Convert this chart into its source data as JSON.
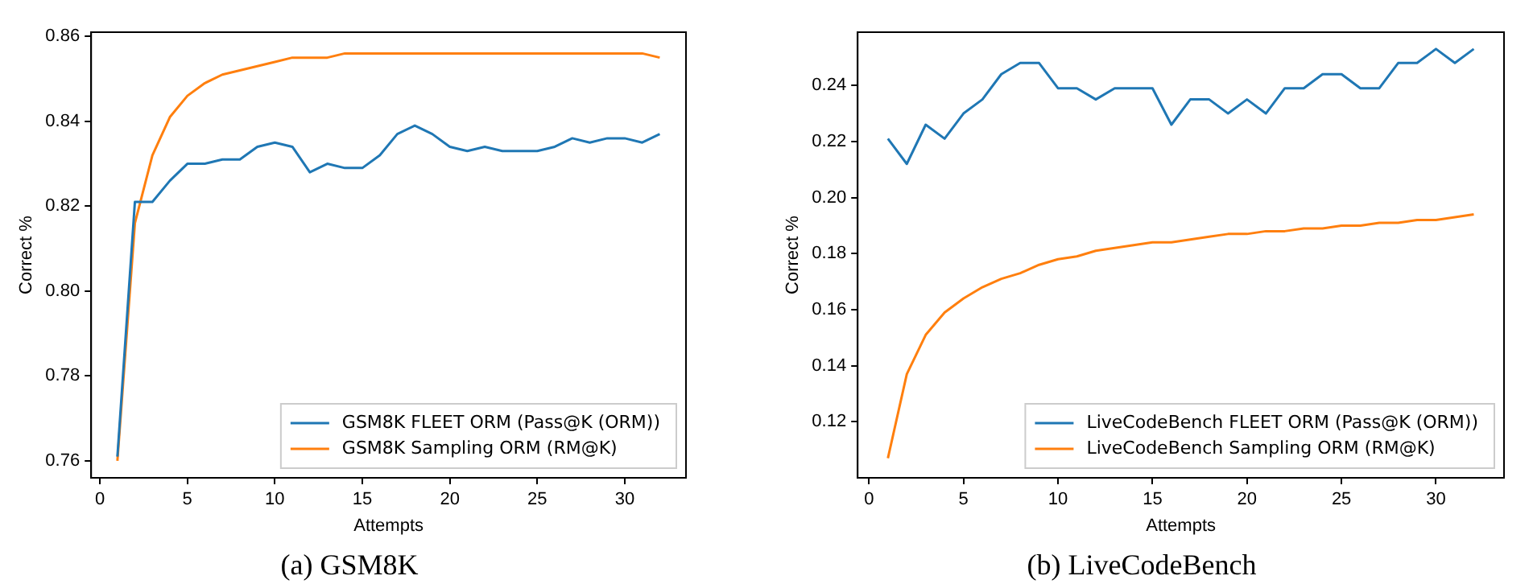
{
  "chart_data": [
    {
      "type": "line",
      "title": "(a) GSM8K",
      "xlabel": "Attempts",
      "ylabel": "Correct %",
      "x": [
        1,
        2,
        3,
        4,
        5,
        6,
        7,
        8,
        9,
        10,
        11,
        12,
        13,
        14,
        15,
        16,
        17,
        18,
        19,
        20,
        21,
        22,
        23,
        24,
        25,
        26,
        27,
        28,
        29,
        30,
        31,
        32
      ],
      "series": [
        {
          "name": "GSM8K FLEET ORM (Pass@K (ORM))",
          "color": "#1f77b4",
          "values": [
            0.761,
            0.821,
            0.821,
            0.826,
            0.83,
            0.83,
            0.831,
            0.831,
            0.834,
            0.835,
            0.834,
            0.828,
            0.83,
            0.829,
            0.829,
            0.832,
            0.837,
            0.839,
            0.837,
            0.834,
            0.833,
            0.834,
            0.833,
            0.833,
            0.833,
            0.834,
            0.836,
            0.835,
            0.836,
            0.836,
            0.835,
            0.837
          ]
        },
        {
          "name": "GSM8K Sampling ORM (RM@K)",
          "color": "#ff7f0e",
          "values": [
            0.76,
            0.816,
            0.832,
            0.841,
            0.846,
            0.849,
            0.851,
            0.852,
            0.853,
            0.854,
            0.855,
            0.855,
            0.855,
            0.856,
            0.856,
            0.856,
            0.856,
            0.856,
            0.856,
            0.856,
            0.856,
            0.856,
            0.856,
            0.856,
            0.856,
            0.856,
            0.856,
            0.856,
            0.856,
            0.856,
            0.856,
            0.855
          ]
        }
      ],
      "xlim": [
        -0.5,
        33.5
      ],
      "xticks": [
        0,
        5,
        10,
        15,
        20,
        25,
        30
      ],
      "ylim": [
        0.756,
        0.861
      ],
      "yticks": [
        0.76,
        0.78,
        {
          "value": 0.8,
          "label": "0.80"
        },
        0.82,
        0.84,
        0.86
      ],
      "legend": "bottom right",
      "grid": false,
      "marker": "none"
    },
    {
      "type": "line",
      "title": "(b) LiveCodeBench",
      "xlabel": "Attempts",
      "ylabel": "Correct %",
      "x": [
        1,
        2,
        3,
        4,
        5,
        6,
        7,
        8,
        9,
        10,
        11,
        12,
        13,
        14,
        15,
        16,
        17,
        18,
        19,
        20,
        21,
        22,
        23,
        24,
        25,
        26,
        27,
        28,
        29,
        30,
        31,
        32
      ],
      "series": [
        {
          "name": "LiveCodeBench FLEET ORM (Pass@K (ORM))",
          "color": "#1f77b4",
          "values": [
            0.221,
            0.212,
            0.226,
            0.221,
            0.23,
            0.235,
            0.244,
            0.248,
            0.248,
            0.239,
            0.239,
            0.235,
            0.239,
            0.239,
            0.239,
            0.226,
            0.235,
            0.235,
            0.23,
            0.235,
            0.23,
            0.239,
            0.239,
            0.244,
            0.244,
            0.239,
            0.239,
            0.248,
            0.248,
            0.253,
            0.248,
            0.253
          ]
        },
        {
          "name": "LiveCodeBench Sampling ORM (RM@K)",
          "color": "#ff7f0e",
          "values": [
            0.107,
            0.137,
            0.151,
            0.159,
            0.164,
            0.168,
            0.171,
            0.173,
            0.176,
            0.178,
            0.179,
            0.181,
            0.182,
            0.183,
            0.184,
            0.184,
            0.185,
            0.186,
            0.187,
            0.187,
            0.188,
            0.188,
            0.189,
            0.189,
            0.19,
            0.19,
            0.191,
            0.191,
            0.192,
            0.192,
            0.193,
            0.194
          ]
        }
      ],
      "xlim": [
        -0.6,
        33.6
      ],
      "xticks": [
        0,
        5,
        10,
        15,
        20,
        25,
        30
      ],
      "ylim": [
        0.1,
        0.259
      ],
      "yticks": [
        0.12,
        0.14,
        0.16,
        0.18,
        {
          "value": 0.2,
          "label": "0.20"
        },
        0.22,
        0.24
      ],
      "legend": "bottom right",
      "grid": false,
      "marker": "none"
    }
  ]
}
